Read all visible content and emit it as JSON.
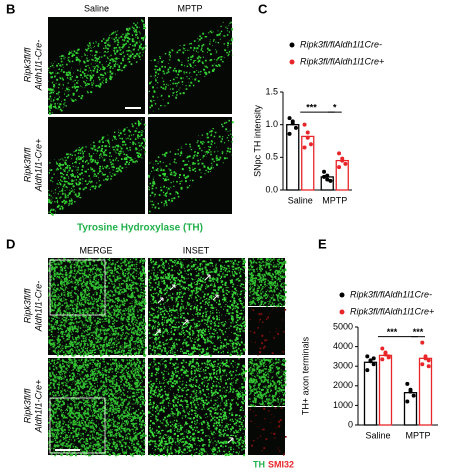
{
  "panel_b": {
    "label": "B",
    "columns": [
      "Saline",
      "MPTP"
    ],
    "rows": [
      [
        "Ripk3fl/fl",
        "Aldh1l1-Cre-"
      ],
      [
        "Ripk3fl/fl",
        "Aldh1l1-Cre+"
      ]
    ],
    "caption": "Tyrosine Hydroxylase (TH)"
  },
  "panel_d": {
    "label": "D",
    "columns": [
      "MERGE",
      "INSET"
    ],
    "rows": [
      [
        "Ripk3fl/fl",
        "Aldh1l1-Cre-"
      ],
      [
        "Ripk3fl/fl",
        "Aldh1l1-Cre+"
      ]
    ],
    "channels": [
      "TH",
      "SMI32"
    ]
  },
  "chart_data": [
    {
      "type": "bar",
      "label": "C",
      "ylabel": "SNpc TH intensity",
      "categories": [
        "Saline",
        "MPTP"
      ],
      "series": [
        {
          "name": "Ripk3fl/flAldh1l1Cre-",
          "color": "#000000",
          "values": [
            1.0,
            0.2
          ],
          "points": [
            [
              1.1,
              1.02,
              0.95,
              0.86,
              1.05
            ],
            [
              0.28,
              0.16,
              0.14,
              0.2,
              0.22
            ]
          ]
        },
        {
          "name": "Ripk3fl/flAldh1l1Cre+",
          "color": "#e8262a",
          "values": [
            0.82,
            0.45
          ],
          "points": [
            [
              1.0,
              0.8,
              0.7,
              0.65,
              0.88
            ],
            [
              0.56,
              0.48,
              0.4,
              0.35,
              0.45
            ]
          ]
        }
      ],
      "ylim": [
        0,
        1.5
      ],
      "yticks": [
        {
          "value": 0,
          "label": "0.0"
        },
        {
          "value": 0.5,
          "label": "0.5"
        },
        {
          "value": 1,
          "label": "1.0"
        },
        {
          "value": 1.5,
          "label": "1.5"
        }
      ],
      "annotations": [
        "***",
        "*"
      ]
    },
    {
      "type": "bar",
      "label": "E",
      "ylabel": "TH+ axon terminals",
      "categories": [
        "Saline",
        "MPTP"
      ],
      "series": [
        {
          "name": "Ripk3fl/flAldh1l1Cre-",
          "color": "#000000",
          "values": [
            3200,
            1650
          ],
          "points": [
            [
              3500,
              3300,
              3100,
              2800,
              3250,
              3400
            ],
            [
              2100,
              1800,
              1500,
              1200,
              1700
            ]
          ]
        },
        {
          "name": "Ripk3fl/flAldh1l1Cre+",
          "color": "#e8262a",
          "values": [
            3550,
            3400
          ],
          "points": [
            [
              3900,
              3700,
              3500,
              3350,
              3600,
              3450
            ],
            [
              4200,
              3500,
              3300,
              3100,
              3400,
              3000
            ]
          ]
        }
      ],
      "ylim": [
        0,
        5000
      ],
      "yticks": [
        0,
        1000,
        2000,
        3000,
        4000,
        5000
      ],
      "annotations": [
        "***",
        "***"
      ]
    }
  ]
}
